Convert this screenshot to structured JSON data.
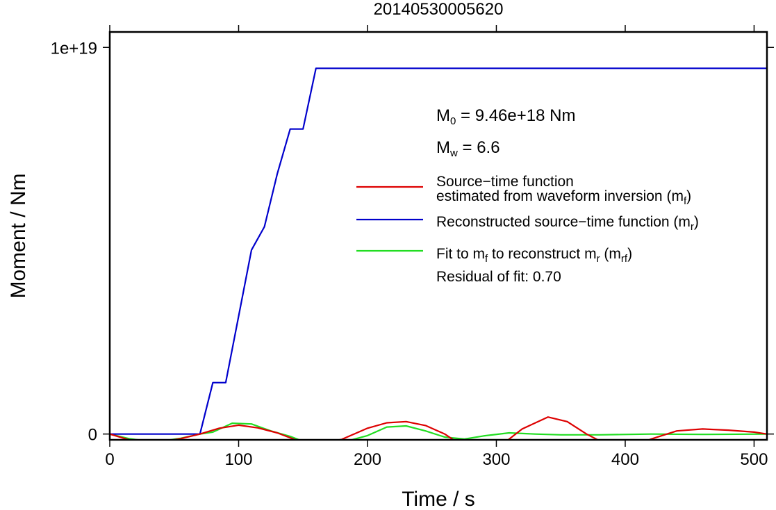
{
  "chart_data": {
    "type": "line",
    "title": "20140530005620",
    "xlabel": "Time / s",
    "ylabel": "Moment / Nm",
    "xlim": [
      0,
      510
    ],
    "ylim": [
      -1.5e+17,
      1.04e+19
    ],
    "x_ticks": [
      0,
      100,
      200,
      300,
      400,
      500
    ],
    "x_tick_labels": [
      "0",
      "100",
      "200",
      "300",
      "400",
      "500"
    ],
    "y_ticks": [
      0,
      1e+19
    ],
    "y_tick_labels": [
      "0",
      "1e+19"
    ],
    "grid": false,
    "legend_position": "right",
    "annotations": {
      "m0": {
        "prefix": "M",
        "sub": "0",
        "suffix": " = 9.46e+18 Nm"
      },
      "mw": {
        "prefix": "M",
        "sub": "w",
        "suffix": " = 6.6"
      }
    },
    "legend": [
      {
        "color": "#dd0000",
        "lines": [
          [
            {
              "t": "Source−time function"
            }
          ],
          [
            {
              "t": "estimated from waveform inversion (m"
            },
            {
              "t": "f",
              "sub": true
            },
            {
              "t": ")"
            }
          ]
        ]
      },
      {
        "color": "#0000cc",
        "lines": [
          [
            {
              "t": "Reconstructed source−time function (m"
            },
            {
              "t": "r",
              "sub": true
            },
            {
              "t": ")"
            }
          ]
        ]
      },
      {
        "color": "#22dd22",
        "lines": [
          [
            {
              "t": "Fit to m"
            },
            {
              "t": "f",
              "sub": true
            },
            {
              "t": " to reconstruct m"
            },
            {
              "t": "r",
              "sub": true
            },
            {
              "t": " (m"
            },
            {
              "t": "rf",
              "sub": true
            },
            {
              "t": ")"
            }
          ]
        ]
      }
    ],
    "residual_text": "Residual of fit: 0.70",
    "series": [
      {
        "color": "#0000cc",
        "x": [
          0,
          70,
          80,
          90,
          100,
          110,
          120,
          130,
          140,
          150,
          160,
          510
        ],
        "y": [
          0,
          0,
          1.33e+18,
          1.33e+18,
          3.05e+18,
          4.76e+18,
          5.36e+18,
          6.73e+18,
          7.89e+18,
          7.89e+18,
          9.46e+18,
          9.46e+18
        ]
      },
      {
        "color": "#dd0000",
        "x": [
          0,
          15,
          35,
          55,
          70,
          85,
          100,
          115,
          130,
          145,
          160,
          180,
          200,
          215,
          230,
          245,
          260,
          275,
          290,
          305,
          320,
          340,
          355,
          370,
          385,
          405,
          420,
          440,
          460,
          480,
          500,
          510
        ],
        "y": [
          0,
          -1.5e+17,
          -2.3e+17,
          -1.2e+17,
          0,
          1.5e+17,
          2.3e+17,
          1.6e+17,
          3e+16,
          -1.6e+17,
          -2.6e+17,
          -1.4e+17,
          1.5e+17,
          2.9e+17,
          3.2e+17,
          2.2e+17,
          0,
          -3.4e+17,
          -4.6e+17,
          -2.6e+17,
          1.3e+17,
          4.4e+17,
          3.2e+17,
          0,
          -2.6e+17,
          -3.4e+17,
          -1.3e+17,
          8e+16,
          1.3e+17,
          1e+17,
          5e+16,
          0
        ]
      },
      {
        "color": "#22dd22",
        "x": [
          0,
          15,
          35,
          55,
          70,
          80,
          95,
          110,
          125,
          140,
          150,
          165,
          180,
          200,
          215,
          230,
          245,
          260,
          275,
          290,
          310,
          330,
          350,
          380,
          420,
          460,
          510
        ],
        "y": [
          0,
          -1.2e+17,
          -2.1e+17,
          -1.1e+17,
          0,
          5e+16,
          2.8e+17,
          2.6e+17,
          8e+16,
          -6e+16,
          -1.9e+17,
          -2.8e+17,
          -2.2e+17,
          -4e+16,
          1.8e+17,
          2.1e+17,
          8e+16,
          -8e+16,
          -1.3e+17,
          -5e+16,
          3e+16,
          0,
          -2e+16,
          -2e+16,
          0,
          -1e+16,
          0
        ]
      }
    ]
  }
}
